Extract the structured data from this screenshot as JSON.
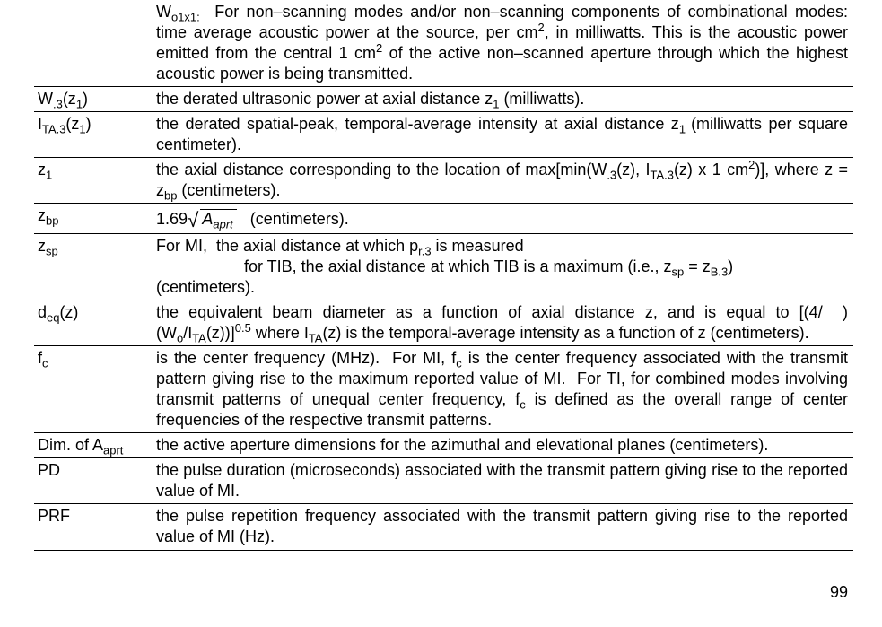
{
  "rows": [
    {
      "term_html": "",
      "def_html": "W<sub>o1x1:</sub>&nbsp;&nbsp;For non–scanning modes and/or non–scanning components of combinational modes: time average acoustic power at the source, per cm<sup>2</sup>, in milliwatts. This is the acoustic power emitted from the central 1 cm<sup>2</sup> of the active non–scanned aperture through which the highest acoustic power is being transmitted.",
      "justify": true
    },
    {
      "term_html": "W<sub>.3</sub>(z<sub>1</sub>)",
      "def_html": "the derated ultrasonic power at axial distance z<sub>1</sub> (milliwatts).",
      "justify": false
    },
    {
      "term_html": "I<sub>TA.3</sub>(z<sub>1</sub>)",
      "def_html": "the derated spatial-peak, temporal-average intensity at axial distance z<sub>1 </sub>(milliwatts per square centimeter).",
      "justify": true
    },
    {
      "term_html": "z<sub>1</sub>",
      "def_html": "the axial distance corresponding to the location of max[min(W<sub>.3</sub>(z), I<sub>TA.3</sub>(z) x 1 cm<sup>2</sup>)], where z = z<sub>bp</sub> (centimeters).",
      "justify": true
    },
    {
      "term_html": "z<sub>bp</sub>",
      "def_html": "1.69<span class=\"radical\">&#8730;</span><span class=\"sqrt\"><span class=\"radicand\">A<sub>aprt</sub></span></span>&nbsp;&nbsp;&nbsp;(centimeters).",
      "justify": false
    },
    {
      "term_html": "z<sub>sp</sub>",
      "def_html": "For MI,&nbsp;&nbsp;the axial distance at which p<sub>r.3</sub> is measured<br><span class=\"indent-block\" style=\"display:block;\">for TIB, the axial distance at which TIB is a maximum (i.e., z<sub>sp</sub> = z<sub>B.3</sub>)</span>(centimeters).",
      "justify": true
    },
    {
      "term_html": "d<sub>eq</sub>(z)",
      "def_html": "the equivalent beam diameter as a function of axial distance z, and is equal to [(4/&nbsp;&nbsp;)(W<sub>o</sub>/I<sub>TA</sub>(z))]<sup>0.5</sup> where I<sub>TA</sub>(z) is the temporal-average intensity as a function of z (centimeters).",
      "justify": true
    },
    {
      "term_html": "f<sub>c</sub>",
      "def_html": "is the center frequency (MHz).&nbsp;&nbsp;For MI, f<sub>c</sub> is the center frequency associated with the transmit pattern giving rise to the maximum reported value of MI.&nbsp; For TI, for combined modes involving transmit patterns of unequal center frequency, f<sub>c</sub> is defined as the overall range of center frequencies of the respective transmit patterns.",
      "justify": true
    },
    {
      "term_html": "Dim. of A<sub>aprt</sub>",
      "def_html": "the active aperture dimensions for the azimuthal and elevational planes (centimeters).",
      "justify": false
    },
    {
      "term_html": "PD",
      "def_html": "the pulse duration (microseconds) associated with the transmit pattern giving rise to the reported value of MI.",
      "justify": true
    },
    {
      "term_html": "PRF",
      "def_html": "the pulse repetition frequency associated with the transmit pattern giving rise to the reported value of MI (Hz).",
      "justify": true
    }
  ],
  "page_number": "99"
}
